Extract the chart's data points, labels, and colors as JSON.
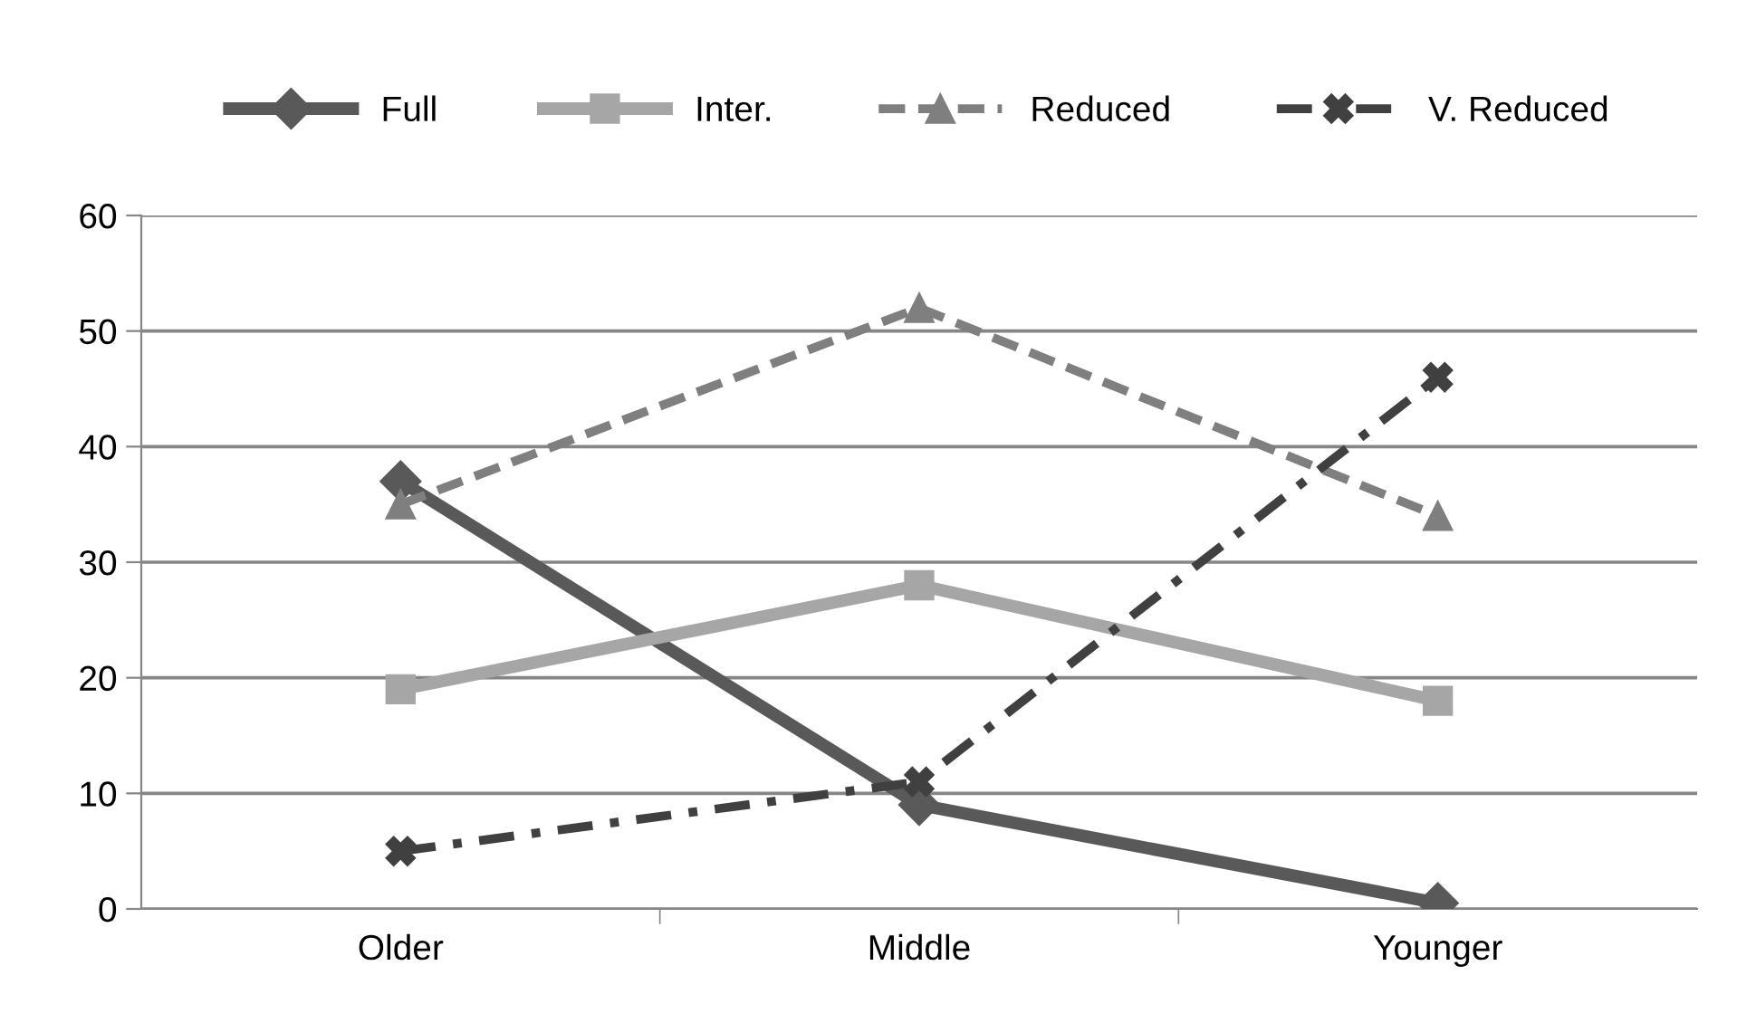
{
  "chart_data": {
    "type": "line",
    "categories": [
      "Older",
      "Middle",
      "Younger"
    ],
    "series": [
      {
        "name": "Full",
        "color": "#595959",
        "values": [
          37,
          9,
          0.5
        ],
        "marker": "diamond",
        "line_style": "solid"
      },
      {
        "name": "Inter.",
        "color": "#a6a6a6",
        "values": [
          19,
          28,
          18
        ],
        "marker": "square",
        "line_style": "solid"
      },
      {
        "name": "Reduced",
        "color": "#7f7f7f",
        "values": [
          35,
          52,
          34
        ],
        "marker": "triangle",
        "line_style": "dashed"
      },
      {
        "name": "V. Reduced",
        "color": "#404040",
        "values": [
          5,
          11,
          46
        ],
        "marker": "cross",
        "line_style": "dashdot"
      }
    ],
    "ylim": [
      0,
      60
    ],
    "yticks": [
      0,
      10,
      20,
      30,
      40,
      50,
      60
    ],
    "grid": "y",
    "legend": "top"
  }
}
